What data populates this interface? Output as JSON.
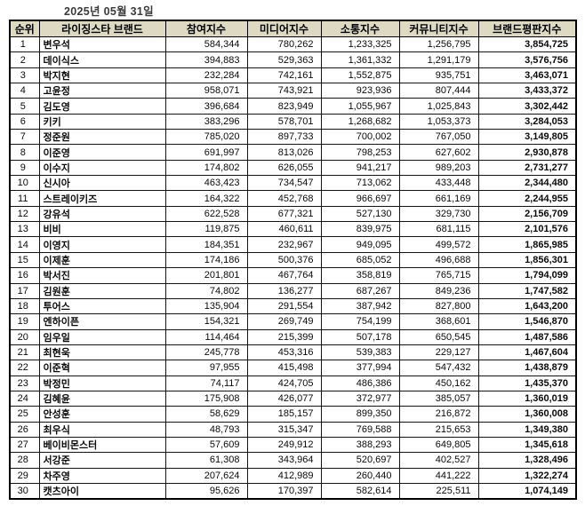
{
  "date_label": "2025년 05월 31일",
  "colors": {
    "header_bg": "#DDD9C3",
    "reputation_text": "#C00000",
    "border": "#000000",
    "body_text": "#0a0a0a"
  },
  "chart_data": {
    "type": "table",
    "title": "2025년 05월 31일",
    "legend_position": "none",
    "grid": true,
    "columns": [
      "순위",
      "라이징스타 브랜드",
      "참여지수",
      "미디어지수",
      "소통지수",
      "커뮤니티지수",
      "브랜드평판지수"
    ],
    "rows": [
      [
        "1",
        "변우석",
        "584,344",
        "780,262",
        "1,233,325",
        "1,256,795",
        "3,854,725"
      ],
      [
        "2",
        "데이식스",
        "394,883",
        "529,363",
        "1,361,332",
        "1,291,179",
        "3,576,756"
      ],
      [
        "3",
        "박지현",
        "232,284",
        "742,161",
        "1,552,875",
        "935,751",
        "3,463,071"
      ],
      [
        "4",
        "고윤정",
        "958,071",
        "743,921",
        "923,936",
        "807,444",
        "3,433,372"
      ],
      [
        "5",
        "김도영",
        "396,684",
        "823,949",
        "1,055,967",
        "1,025,843",
        "3,302,442"
      ],
      [
        "6",
        "키키",
        "383,296",
        "578,701",
        "1,268,682",
        "1,053,373",
        "3,284,053"
      ],
      [
        "7",
        "정준원",
        "785,020",
        "897,733",
        "700,002",
        "767,050",
        "3,149,805"
      ],
      [
        "8",
        "이준영",
        "691,997",
        "813,026",
        "798,253",
        "627,602",
        "2,930,878"
      ],
      [
        "9",
        "이수지",
        "174,802",
        "626,055",
        "941,217",
        "989,203",
        "2,731,277"
      ],
      [
        "10",
        "신시아",
        "463,423",
        "734,547",
        "713,062",
        "433,448",
        "2,344,480"
      ],
      [
        "11",
        "스트레이키즈",
        "164,322",
        "452,768",
        "966,697",
        "661,169",
        "2,244,955"
      ],
      [
        "12",
        "강유석",
        "622,528",
        "677,321",
        "527,130",
        "329,730",
        "2,156,709"
      ],
      [
        "13",
        "비비",
        "119,875",
        "460,611",
        "839,975",
        "681,115",
        "2,101,576"
      ],
      [
        "14",
        "이영지",
        "184,351",
        "232,967",
        "949,095",
        "499,572",
        "1,865,985"
      ],
      [
        "15",
        "이제훈",
        "174,186",
        "500,376",
        "685,052",
        "496,688",
        "1,856,301"
      ],
      [
        "16",
        "박서진",
        "201,801",
        "467,764",
        "358,819",
        "765,715",
        "1,794,099"
      ],
      [
        "17",
        "김원훈",
        "74,802",
        "136,277",
        "687,267",
        "849,236",
        "1,747,582"
      ],
      [
        "18",
        "투어스",
        "135,904",
        "291,554",
        "387,942",
        "827,800",
        "1,643,200"
      ],
      [
        "19",
        "엔하이픈",
        "154,321",
        "269,749",
        "754,199",
        "368,601",
        "1,546,870"
      ],
      [
        "20",
        "임우일",
        "114,464",
        "215,399",
        "507,178",
        "650,545",
        "1,487,586"
      ],
      [
        "21",
        "최현욱",
        "245,778",
        "453,316",
        "539,383",
        "229,127",
        "1,467,604"
      ],
      [
        "22",
        "이준혁",
        "97,955",
        "415,498",
        "377,994",
        "547,432",
        "1,438,879"
      ],
      [
        "23",
        "박정민",
        "74,117",
        "424,705",
        "486,386",
        "450,162",
        "1,435,370"
      ],
      [
        "24",
        "김혜윤",
        "175,908",
        "426,077",
        "372,977",
        "385,057",
        "1,360,019"
      ],
      [
        "25",
        "안성훈",
        "58,629",
        "185,157",
        "899,350",
        "216,872",
        "1,360,008"
      ],
      [
        "26",
        "최우식",
        "48,793",
        "315,347",
        "769,588",
        "215,653",
        "1,349,380"
      ],
      [
        "27",
        "베이비몬스터",
        "57,609",
        "249,912",
        "388,293",
        "649,805",
        "1,345,618"
      ],
      [
        "28",
        "서강준",
        "61,308",
        "343,964",
        "520,697",
        "402,527",
        "1,328,496"
      ],
      [
        "29",
        "차주영",
        "207,624",
        "412,989",
        "260,440",
        "441,222",
        "1,322,274"
      ],
      [
        "30",
        "캣츠아이",
        "95,626",
        "170,397",
        "582,614",
        "225,511",
        "1,074,149"
      ]
    ]
  }
}
